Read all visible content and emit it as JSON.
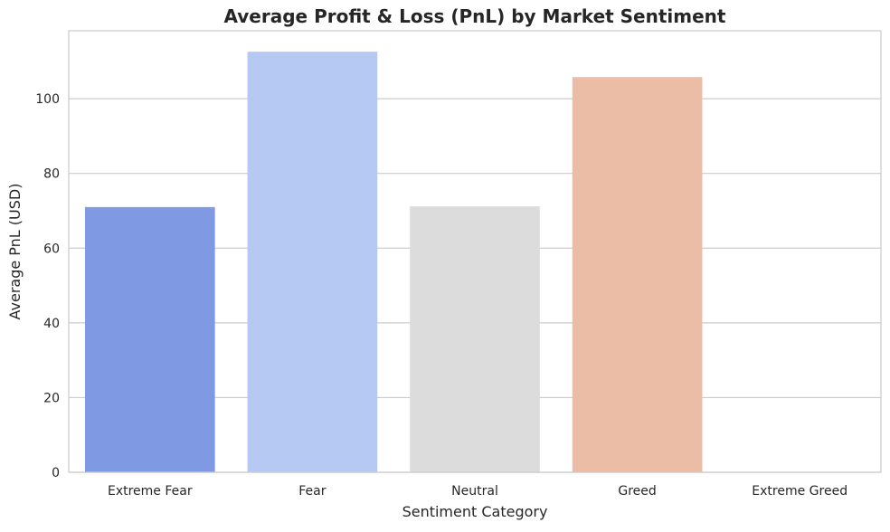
{
  "chart_data": {
    "type": "bar",
    "title": "Average Profit & Loss (PnL) by Market Sentiment",
    "xlabel": "Sentiment Category",
    "ylabel": "Average PnL (USD)",
    "categories": [
      "Extreme Fear",
      "Fear",
      "Neutral",
      "Greed",
      "Extreme Greed"
    ],
    "values": [
      71.0,
      112.6,
      71.2,
      105.8,
      0
    ],
    "colors": [
      "#7f99e3",
      "#b5c9f3",
      "#dcdcdc",
      "#ebbca6",
      "#f0917a"
    ],
    "ylim": [
      0,
      118.2
    ],
    "yticks": [
      0,
      20,
      40,
      60,
      80,
      100
    ],
    "grid": true,
    "grid_color": "#cccccc",
    "frame_color": "#cccccc"
  }
}
